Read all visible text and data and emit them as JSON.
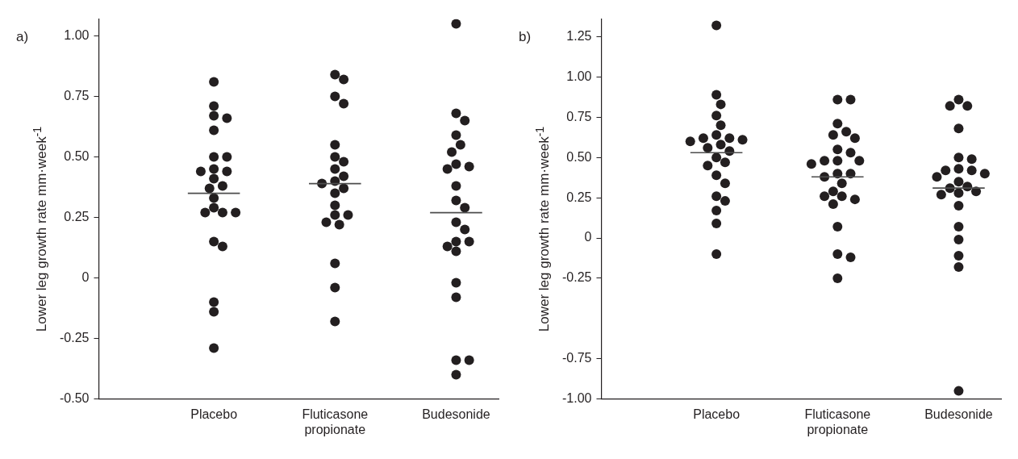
{
  "chart_data": [
    {
      "type": "scatter",
      "annotations": [
        "a)"
      ],
      "ylabel": "Lower leg growth rate  mm·week$^{-1}$",
      "categories": [
        "Placebo",
        "Fluticasone propionate",
        "Budesonide"
      ],
      "ylim": [
        -0.5,
        1.07
      ],
      "yticks": [
        {
          "value": -0.5,
          "label": "-0.50"
        },
        {
          "value": -0.25,
          "label": "-0.25"
        },
        {
          "value": 0,
          "label": "0"
        },
        {
          "value": 0.25,
          "label": "0.25"
        },
        {
          "value": 0.5,
          "label": "0.50"
        },
        {
          "value": 0.75,
          "label": "0.75"
        },
        {
          "value": 1,
          "label": "1.00"
        }
      ],
      "series": [
        {
          "color": "#231f20",
          "marker": "circle",
          "x": [
            "Placebo",
            "Placebo",
            "Placebo",
            "Placebo",
            "Placebo",
            "Placebo",
            "Placebo",
            "Placebo",
            "Placebo",
            "Placebo",
            "Placebo",
            "Placebo",
            "Placebo",
            "Placebo",
            "Placebo",
            "Placebo",
            "Placebo",
            "Placebo",
            "Placebo",
            "Placebo",
            "Placebo",
            "Placebo",
            "Placebo",
            "Fluticasone propionate",
            "Fluticasone propionate",
            "Fluticasone propionate",
            "Fluticasone propionate",
            "Fluticasone propionate",
            "Fluticasone propionate",
            "Fluticasone propionate",
            "Fluticasone propionate",
            "Fluticasone propionate",
            "Fluticasone propionate",
            "Fluticasone propionate",
            "Fluticasone propionate",
            "Fluticasone propionate",
            "Fluticasone propionate",
            "Fluticasone propionate",
            "Fluticasone propionate",
            "Fluticasone propionate",
            "Fluticasone propionate",
            "Fluticasone propionate",
            "Fluticasone propionate",
            "Fluticasone propionate",
            "Budesonide",
            "Budesonide",
            "Budesonide",
            "Budesonide",
            "Budesonide",
            "Budesonide",
            "Budesonide",
            "Budesonide",
            "Budesonide",
            "Budesonide",
            "Budesonide",
            "Budesonide",
            "Budesonide",
            "Budesonide",
            "Budesonide",
            "Budesonide",
            "Budesonide",
            "Budesonide",
            "Budesonide",
            "Budesonide",
            "Budesonide",
            "Budesonide",
            "Budesonide"
          ],
          "values": [
            0.81,
            0.71,
            0.67,
            0.66,
            0.61,
            0.5,
            0.5,
            0.45,
            0.44,
            0.44,
            0.41,
            0.38,
            0.37,
            0.33,
            0.29,
            0.27,
            0.27,
            0.27,
            0.15,
            0.13,
            -0.1,
            -0.14,
            -0.29,
            0.84,
            0.82,
            0.75,
            0.72,
            0.55,
            0.5,
            0.48,
            0.45,
            0.42,
            0.4,
            0.39,
            0.37,
            0.35,
            0.3,
            0.26,
            0.26,
            0.23,
            0.22,
            0.06,
            -0.04,
            -0.18,
            1.05,
            0.68,
            0.65,
            0.59,
            0.55,
            0.52,
            0.47,
            0.46,
            0.45,
            0.38,
            0.32,
            0.29,
            0.23,
            0.2,
            0.15,
            0.15,
            0.13,
            0.11,
            -0.02,
            -0.08,
            -0.34,
            -0.34,
            -0.4
          ]
        },
        {
          "type": "box",
          "color": "#4d4d4d",
          "boxes": [
            {
              "low": 0.35,
              "q1": 0.35,
              "median": 0.35,
              "q3": 0.35,
              "high": 0.35
            },
            {
              "low": 0.39,
              "q1": 0.39,
              "median": 0.39,
              "q3": 0.39,
              "high": 0.39
            },
            {
              "low": 0.27,
              "q1": 0.27,
              "median": 0.27,
              "q3": 0.27,
              "high": 0.27
            }
          ]
        }
      ]
    },
    {
      "type": "scatter",
      "annotations": [
        "b)"
      ],
      "ylabel": "Lower leg growth rate mm·week$^{-1}$",
      "categories": [
        "Placebo",
        "Fluticasone propionate",
        "Budesonide"
      ],
      "ylim": [
        -1.0,
        1.36
      ],
      "yticks": [
        {
          "value": -1,
          "label": "-1.00"
        },
        {
          "value": -0.75,
          "label": "-0.75"
        },
        {
          "value": -0.25,
          "label": "-0.25"
        },
        {
          "value": 0,
          "label": "0"
        },
        {
          "value": 0.25,
          "label": "0.25"
        },
        {
          "value": 0.5,
          "label": "0.50"
        },
        {
          "value": 0.75,
          "label": "0.75"
        },
        {
          "value": 1,
          "label": "1.00"
        },
        {
          "value": 1.25,
          "label": "1.25"
        }
      ],
      "series": [
        {
          "color": "#231f20",
          "marker": "circle",
          "x": [
            "Placebo",
            "Placebo",
            "Placebo",
            "Placebo",
            "Placebo",
            "Placebo",
            "Placebo",
            "Placebo",
            "Placebo",
            "Placebo",
            "Placebo",
            "Placebo",
            "Placebo",
            "Placebo",
            "Placebo",
            "Placebo",
            "Placebo",
            "Placebo",
            "Placebo",
            "Placebo",
            "Placebo",
            "Placebo",
            "Placebo",
            "Fluticasone propionate",
            "Fluticasone propionate",
            "Fluticasone propionate",
            "Fluticasone propionate",
            "Fluticasone propionate",
            "Fluticasone propionate",
            "Fluticasone propionate",
            "Fluticasone propionate",
            "Fluticasone propionate",
            "Fluticasone propionate",
            "Fluticasone propionate",
            "Fluticasone propionate",
            "Fluticasone propionate",
            "Fluticasone propionate",
            "Fluticasone propionate",
            "Fluticasone propionate",
            "Fluticasone propionate",
            "Fluticasone propionate",
            "Fluticasone propionate",
            "Fluticasone propionate",
            "Fluticasone propionate",
            "Fluticasone propionate",
            "Fluticasone propionate",
            "Fluticasone propionate",
            "Fluticasone propionate",
            "Budesonide",
            "Budesonide",
            "Budesonide",
            "Budesonide",
            "Budesonide",
            "Budesonide",
            "Budesonide",
            "Budesonide",
            "Budesonide",
            "Budesonide",
            "Budesonide",
            "Budesonide",
            "Budesonide",
            "Budesonide",
            "Budesonide",
            "Budesonide",
            "Budesonide",
            "Budesonide",
            "Budesonide",
            "Budesonide",
            "Budesonide",
            "Budesonide",
            "Budesonide"
          ],
          "values": [
            1.32,
            0.89,
            0.83,
            0.76,
            0.7,
            0.64,
            0.62,
            0.62,
            0.61,
            0.6,
            0.58,
            0.56,
            0.54,
            0.5,
            0.47,
            0.45,
            0.39,
            0.34,
            0.26,
            0.23,
            0.17,
            0.09,
            -0.1,
            0.86,
            0.86,
            0.71,
            0.66,
            0.64,
            0.62,
            0.55,
            0.53,
            0.48,
            0.48,
            0.48,
            0.46,
            0.4,
            0.4,
            0.38,
            0.34,
            0.29,
            0.26,
            0.26,
            0.24,
            0.21,
            0.07,
            -0.1,
            -0.12,
            -0.25,
            0.86,
            0.82,
            0.82,
            0.68,
            0.5,
            0.49,
            0.43,
            0.42,
            0.42,
            0.4,
            0.38,
            0.35,
            0.32,
            0.31,
            0.29,
            0.28,
            0.27,
            0.2,
            0.07,
            -0.01,
            -0.11,
            -0.18,
            -0.95
          ]
        },
        {
          "type": "box",
          "color": "#4d4d4d",
          "boxes": [
            {
              "low": 0.53,
              "q1": 0.53,
              "median": 0.53,
              "q3": 0.53,
              "high": 0.53
            },
            {
              "low": 0.38,
              "q1": 0.38,
              "median": 0.38,
              "q3": 0.38,
              "high": 0.38
            },
            {
              "low": 0.31,
              "q1": 0.31,
              "median": 0.31,
              "q3": 0.31,
              "high": 0.31
            }
          ]
        }
      ]
    }
  ]
}
